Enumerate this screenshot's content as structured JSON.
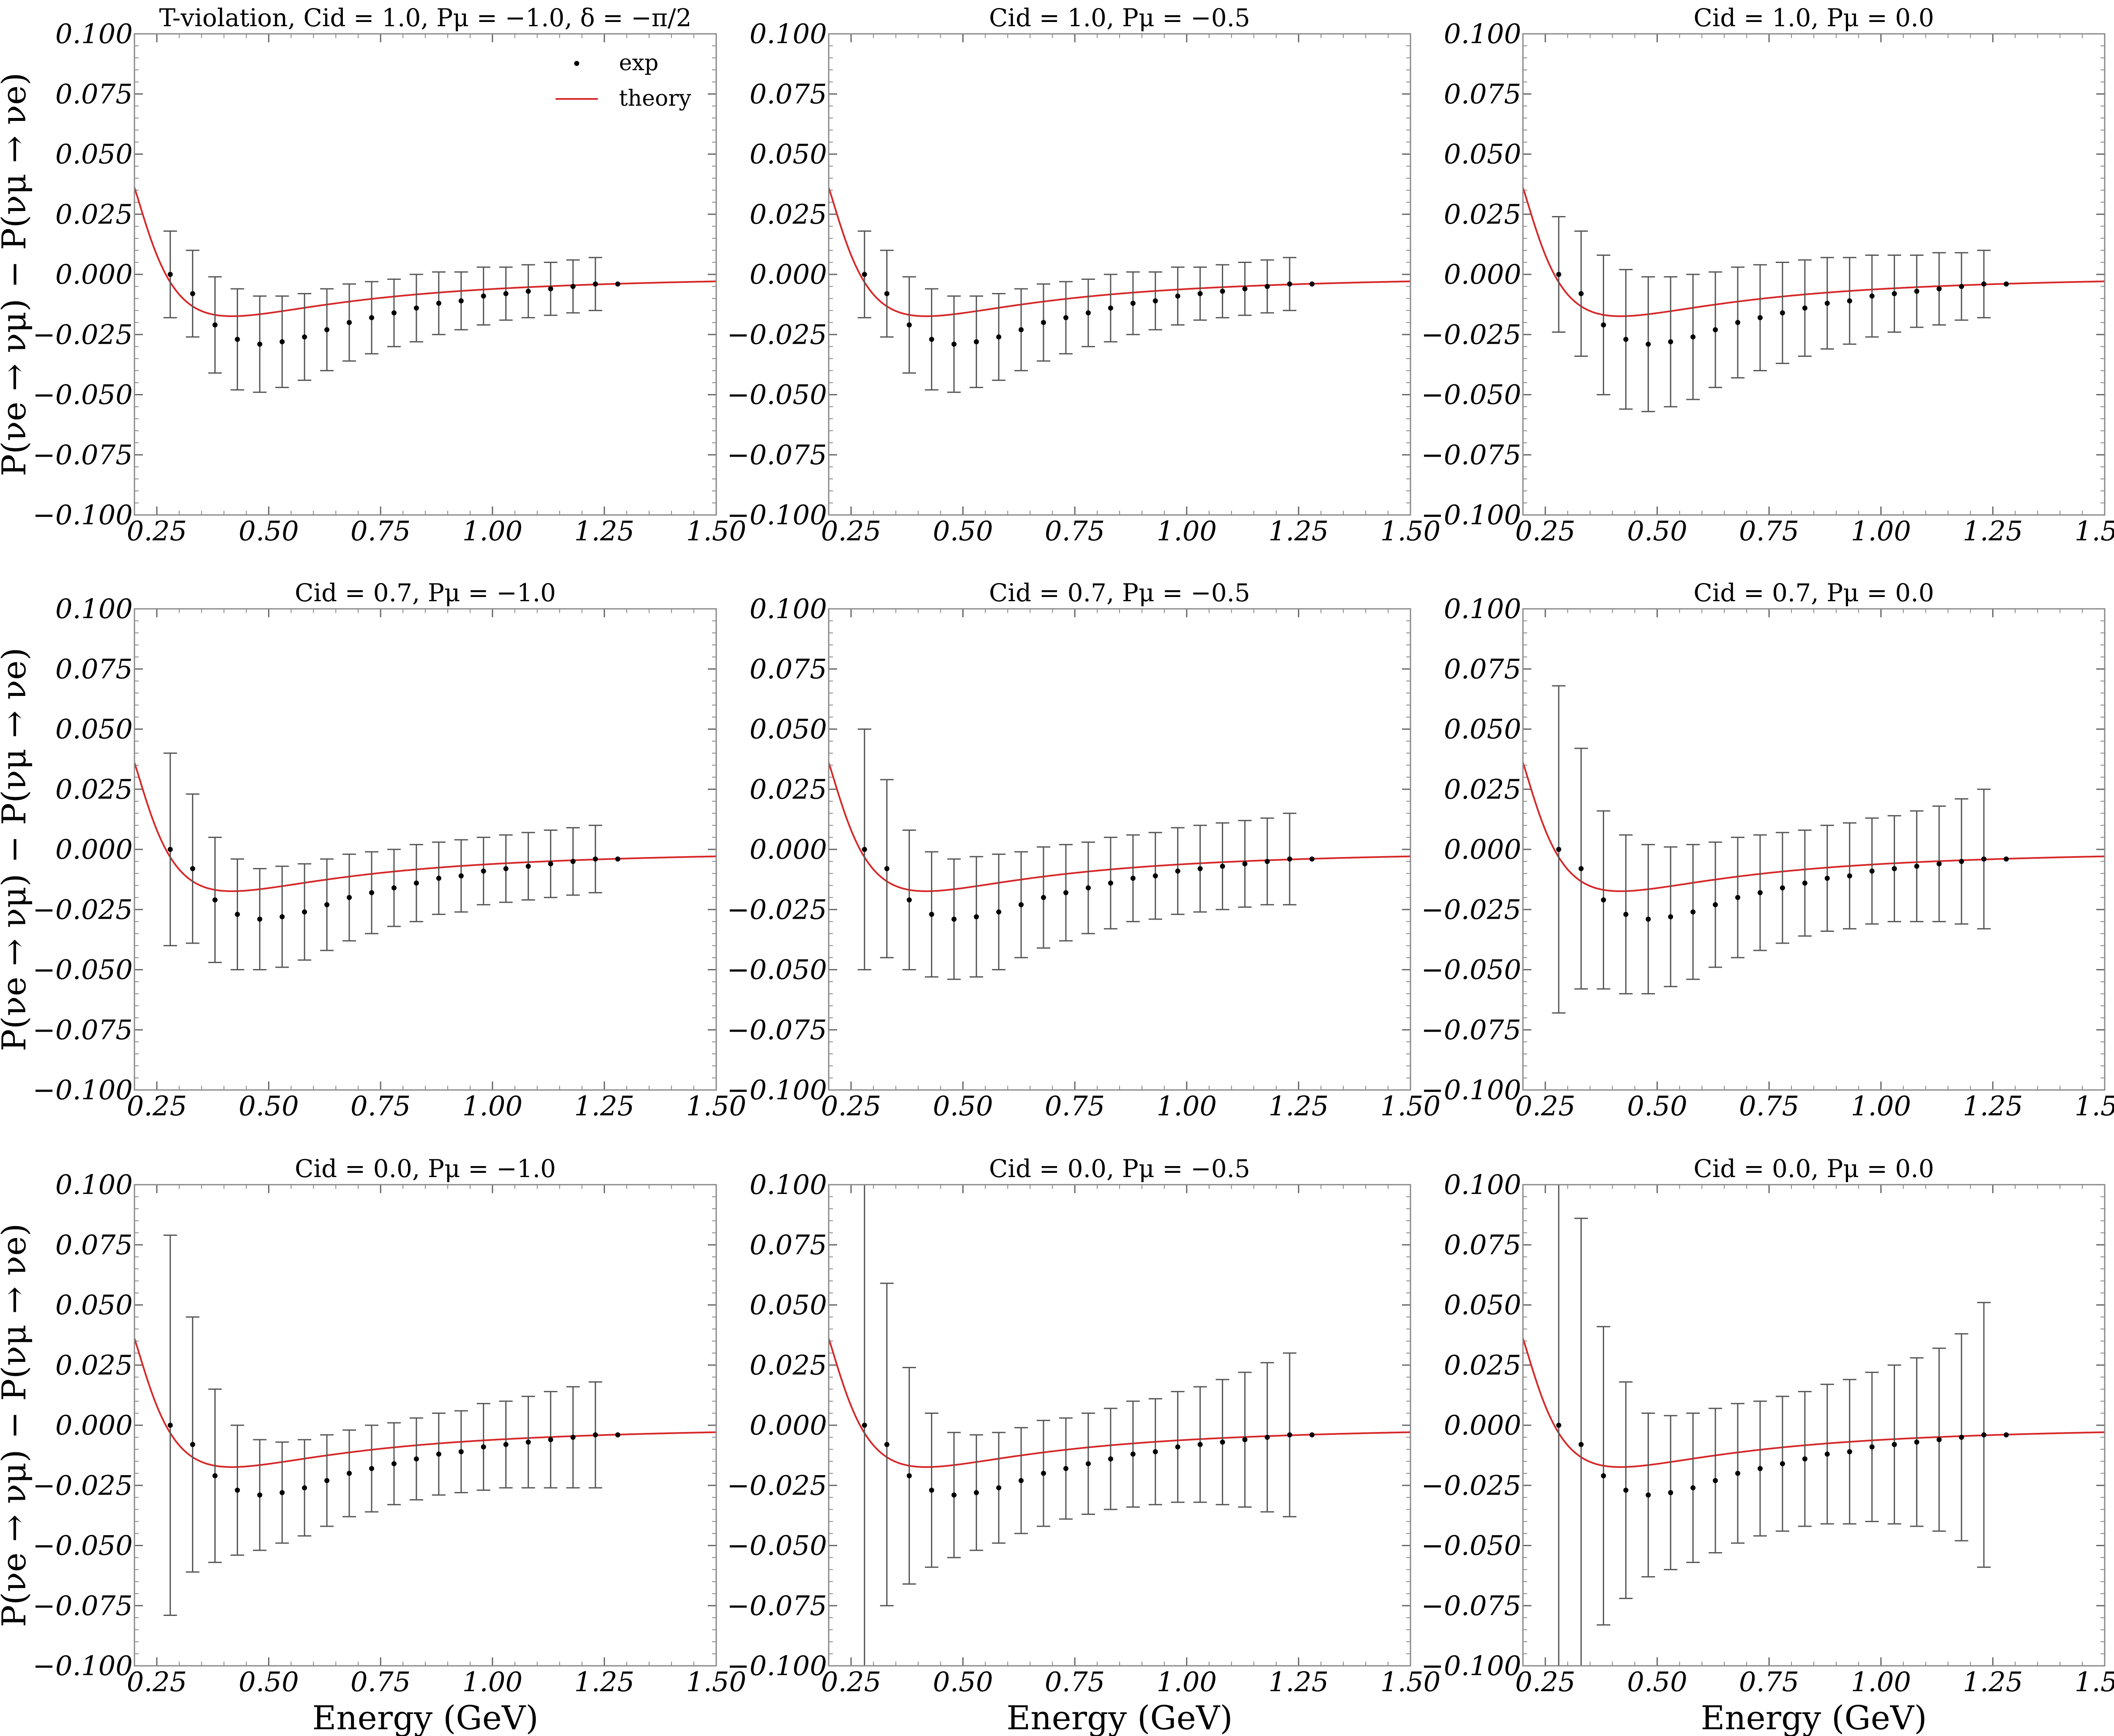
{
  "figure": {
    "xlabel": "Energy (GeV)",
    "ylabel": "P(νe → νμ) − P(νμ → νe)",
    "xlim": [
      0.2,
      1.5
    ],
    "ylim": [
      -0.1,
      0.1
    ],
    "xticks": [
      0.25,
      0.5,
      0.75,
      1.0,
      1.25,
      1.5
    ],
    "xtick_labels": [
      "0.25",
      "0.50",
      "0.75",
      "1.00",
      "1.25",
      "1.50"
    ],
    "yticks": [
      -0.1,
      -0.075,
      -0.05,
      -0.025,
      0.0,
      0.025,
      0.05,
      0.075,
      0.1
    ],
    "ytick_labels": [
      "−0.100",
      "−0.075",
      "−0.050",
      "−0.025",
      "0.000",
      "0.025",
      "0.050",
      "0.075",
      "0.100"
    ],
    "legend": {
      "placement": "top-right",
      "exp": "exp",
      "theory": "theory"
    },
    "colors": {
      "theory": "#d62728",
      "exp": "#000000",
      "axes": "#888888"
    }
  },
  "chart_data": [
    {
      "type": "line",
      "title": "T-violation, Cid = 1.0,  Pμ = −1.0,  δ = −π/2",
      "x": [
        0.28,
        0.33,
        0.38,
        0.43,
        0.48,
        0.53,
        0.58,
        0.63,
        0.68,
        0.73,
        0.78,
        0.83,
        0.88,
        0.93,
        0.98,
        1.03,
        1.08,
        1.13,
        1.18,
        1.23,
        1.28
      ],
      "y": [
        0.0,
        -0.008,
        -0.021,
        -0.027,
        -0.029,
        -0.028,
        -0.026,
        -0.023,
        -0.02,
        -0.018,
        -0.016,
        -0.014,
        -0.012,
        -0.011,
        -0.009,
        -0.008,
        -0.007,
        -0.006,
        -0.005,
        -0.004,
        -0.004
      ],
      "yerr": [
        0.018,
        0.018,
        0.02,
        0.021,
        0.02,
        0.019,
        0.018,
        0.017,
        0.016,
        0.015,
        0.014,
        0.014,
        0.013,
        0.012,
        0.012,
        0.011,
        0.011,
        0.011,
        0.011,
        0.011,
        0.0
      ]
    },
    {
      "type": "line",
      "title": "Cid = 1.0,  Pμ = −0.5",
      "x": [
        0.28,
        0.33,
        0.38,
        0.43,
        0.48,
        0.53,
        0.58,
        0.63,
        0.68,
        0.73,
        0.78,
        0.83,
        0.88,
        0.93,
        0.98,
        1.03,
        1.08,
        1.13,
        1.18,
        1.23,
        1.28
      ],
      "y": [
        0.0,
        -0.008,
        -0.021,
        -0.027,
        -0.029,
        -0.028,
        -0.026,
        -0.023,
        -0.02,
        -0.018,
        -0.016,
        -0.014,
        -0.012,
        -0.011,
        -0.009,
        -0.008,
        -0.007,
        -0.006,
        -0.005,
        -0.004,
        -0.004
      ],
      "yerr": [
        0.018,
        0.018,
        0.02,
        0.021,
        0.02,
        0.019,
        0.018,
        0.017,
        0.016,
        0.015,
        0.014,
        0.014,
        0.013,
        0.012,
        0.012,
        0.011,
        0.011,
        0.011,
        0.011,
        0.011,
        0.0
      ]
    },
    {
      "type": "line",
      "title": "Cid = 1.0,  Pμ = 0.0",
      "x": [
        0.28,
        0.33,
        0.38,
        0.43,
        0.48,
        0.53,
        0.58,
        0.63,
        0.68,
        0.73,
        0.78,
        0.83,
        0.88,
        0.93,
        0.98,
        1.03,
        1.08,
        1.13,
        1.18,
        1.23,
        1.28
      ],
      "y": [
        0.0,
        -0.008,
        -0.021,
        -0.027,
        -0.029,
        -0.028,
        -0.026,
        -0.023,
        -0.02,
        -0.018,
        -0.016,
        -0.014,
        -0.012,
        -0.011,
        -0.009,
        -0.008,
        -0.007,
        -0.006,
        -0.005,
        -0.004,
        -0.004
      ],
      "yerr": [
        0.024,
        0.026,
        0.029,
        0.029,
        0.028,
        0.027,
        0.026,
        0.024,
        0.023,
        0.022,
        0.021,
        0.02,
        0.019,
        0.018,
        0.017,
        0.016,
        0.015,
        0.015,
        0.014,
        0.014,
        0.0
      ]
    },
    {
      "type": "line",
      "title": "Cid = 0.7,  Pμ = −1.0",
      "x": [
        0.28,
        0.33,
        0.38,
        0.43,
        0.48,
        0.53,
        0.58,
        0.63,
        0.68,
        0.73,
        0.78,
        0.83,
        0.88,
        0.93,
        0.98,
        1.03,
        1.08,
        1.13,
        1.18,
        1.23,
        1.28
      ],
      "y": [
        0.0,
        -0.008,
        -0.021,
        -0.027,
        -0.029,
        -0.028,
        -0.026,
        -0.023,
        -0.02,
        -0.018,
        -0.016,
        -0.014,
        -0.012,
        -0.011,
        -0.009,
        -0.008,
        -0.007,
        -0.006,
        -0.005,
        -0.004,
        -0.004
      ],
      "yerr": [
        0.04,
        0.031,
        0.026,
        0.023,
        0.021,
        0.021,
        0.02,
        0.019,
        0.018,
        0.017,
        0.016,
        0.016,
        0.015,
        0.015,
        0.014,
        0.014,
        0.014,
        0.014,
        0.014,
        0.014,
        0.0
      ]
    },
    {
      "type": "line",
      "title": "Cid = 0.7,  Pμ = −0.5",
      "x": [
        0.28,
        0.33,
        0.38,
        0.43,
        0.48,
        0.53,
        0.58,
        0.63,
        0.68,
        0.73,
        0.78,
        0.83,
        0.88,
        0.93,
        0.98,
        1.03,
        1.08,
        1.13,
        1.18,
        1.23,
        1.28
      ],
      "y": [
        0.0,
        -0.008,
        -0.021,
        -0.027,
        -0.029,
        -0.028,
        -0.026,
        -0.023,
        -0.02,
        -0.018,
        -0.016,
        -0.014,
        -0.012,
        -0.011,
        -0.009,
        -0.008,
        -0.007,
        -0.006,
        -0.005,
        -0.004,
        -0.004
      ],
      "yerr": [
        0.05,
        0.037,
        0.029,
        0.026,
        0.025,
        0.025,
        0.024,
        0.022,
        0.021,
        0.02,
        0.019,
        0.019,
        0.018,
        0.018,
        0.018,
        0.018,
        0.018,
        0.018,
        0.018,
        0.019,
        0.0
      ]
    },
    {
      "type": "line",
      "title": "Cid = 0.7,  Pμ = 0.0",
      "x": [
        0.28,
        0.33,
        0.38,
        0.43,
        0.48,
        0.53,
        0.58,
        0.63,
        0.68,
        0.73,
        0.78,
        0.83,
        0.88,
        0.93,
        0.98,
        1.03,
        1.08,
        1.13,
        1.18,
        1.23,
        1.28
      ],
      "y": [
        0.0,
        -0.008,
        -0.021,
        -0.027,
        -0.029,
        -0.028,
        -0.026,
        -0.023,
        -0.02,
        -0.018,
        -0.016,
        -0.014,
        -0.012,
        -0.011,
        -0.009,
        -0.008,
        -0.007,
        -0.006,
        -0.005,
        -0.004,
        -0.004
      ],
      "yerr": [
        0.068,
        0.05,
        0.037,
        0.033,
        0.031,
        0.029,
        0.028,
        0.026,
        0.025,
        0.024,
        0.023,
        0.022,
        0.022,
        0.022,
        0.022,
        0.022,
        0.023,
        0.024,
        0.026,
        0.029,
        0.0
      ]
    },
    {
      "type": "line",
      "title": "Cid = 0.0,  Pμ = −1.0",
      "x": [
        0.28,
        0.33,
        0.38,
        0.43,
        0.48,
        0.53,
        0.58,
        0.63,
        0.68,
        0.73,
        0.78,
        0.83,
        0.88,
        0.93,
        0.98,
        1.03,
        1.08,
        1.13,
        1.18,
        1.23,
        1.28
      ],
      "y": [
        0.0,
        -0.008,
        -0.021,
        -0.027,
        -0.029,
        -0.028,
        -0.026,
        -0.023,
        -0.02,
        -0.018,
        -0.016,
        -0.014,
        -0.012,
        -0.011,
        -0.009,
        -0.008,
        -0.007,
        -0.006,
        -0.005,
        -0.004,
        -0.004
      ],
      "yerr": [
        0.079,
        0.053,
        0.036,
        0.027,
        0.023,
        0.021,
        0.02,
        0.019,
        0.018,
        0.018,
        0.017,
        0.017,
        0.017,
        0.017,
        0.018,
        0.018,
        0.019,
        0.02,
        0.021,
        0.022,
        0.0
      ]
    },
    {
      "type": "line",
      "title": "Cid = 0.0,  Pμ = −0.5",
      "x": [
        0.28,
        0.33,
        0.38,
        0.43,
        0.48,
        0.53,
        0.58,
        0.63,
        0.68,
        0.73,
        0.78,
        0.83,
        0.88,
        0.93,
        0.98,
        1.03,
        1.08,
        1.13,
        1.18,
        1.23,
        1.28
      ],
      "y": [
        0.0,
        -0.008,
        -0.021,
        -0.027,
        -0.029,
        -0.028,
        -0.026,
        -0.023,
        -0.02,
        -0.018,
        -0.016,
        -0.014,
        -0.012,
        -0.011,
        -0.009,
        -0.008,
        -0.007,
        -0.006,
        -0.005,
        -0.004,
        -0.004
      ],
      "yerr": [
        0.11,
        0.067,
        0.045,
        0.032,
        0.026,
        0.024,
        0.023,
        0.022,
        0.022,
        0.021,
        0.021,
        0.021,
        0.022,
        0.022,
        0.023,
        0.024,
        0.026,
        0.028,
        0.031,
        0.034,
        0.0
      ]
    },
    {
      "type": "line",
      "title": "Cid = 0.0,  Pμ = 0.0",
      "x": [
        0.28,
        0.33,
        0.38,
        0.43,
        0.48,
        0.53,
        0.58,
        0.63,
        0.68,
        0.73,
        0.78,
        0.83,
        0.88,
        0.93,
        0.98,
        1.03,
        1.08,
        1.13,
        1.18,
        1.23,
        1.28
      ],
      "y": [
        0.0,
        -0.008,
        -0.021,
        -0.027,
        -0.029,
        -0.028,
        -0.026,
        -0.023,
        -0.02,
        -0.018,
        -0.016,
        -0.014,
        -0.012,
        -0.011,
        -0.009,
        -0.008,
        -0.007,
        -0.006,
        -0.005,
        -0.004,
        -0.004
      ],
      "yerr": [
        0.13,
        0.094,
        0.062,
        0.045,
        0.034,
        0.032,
        0.031,
        0.03,
        0.029,
        0.028,
        0.028,
        0.028,
        0.029,
        0.03,
        0.031,
        0.033,
        0.035,
        0.038,
        0.043,
        0.055,
        0.0
      ]
    }
  ]
}
